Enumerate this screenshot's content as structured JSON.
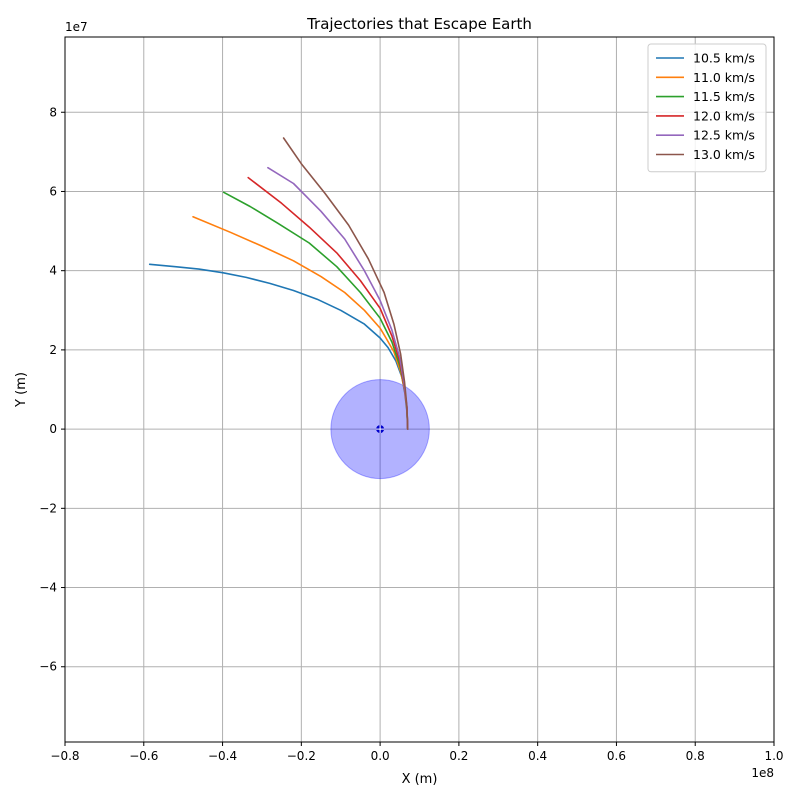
{
  "chart_data": {
    "type": "line",
    "title": "Trajectories that Escape Earth",
    "xlabel": "X (m)",
    "ylabel": "Y (m)",
    "x_offset_label": "1e8",
    "y_offset_label": "1e7",
    "xlim": [
      -0.8,
      1.0
    ],
    "ylim": [
      -7.9,
      9.9
    ],
    "xticks": [
      -0.8,
      -0.6,
      -0.4,
      -0.2,
      0.0,
      0.2,
      0.4,
      0.6,
      0.8,
      1.0
    ],
    "xtick_labels": [
      "−0.8",
      "−0.6",
      "−0.4",
      "−0.2",
      "0.0",
      "0.2",
      "0.4",
      "0.6",
      "0.8",
      "1.0"
    ],
    "yticks": [
      -6,
      -4,
      -2,
      0,
      2,
      4,
      6,
      8
    ],
    "ytick_labels": [
      "−6",
      "−4",
      "−2",
      "0",
      "2",
      "4",
      "6",
      "8"
    ],
    "grid": true,
    "legend_position": "top-right",
    "earth": {
      "center": [
        0,
        0
      ],
      "radius": 0.125,
      "fill_color": "#0000ff",
      "dot_color": "#0000cc"
    },
    "series": [
      {
        "name": "10.5 km/s",
        "color": "#1f77b4",
        "points": [
          [
            0.07,
            0.0
          ],
          [
            0.068,
            0.45
          ],
          [
            0.063,
            0.9
          ],
          [
            0.055,
            1.32
          ],
          [
            0.04,
            1.72
          ],
          [
            0.02,
            2.06
          ],
          [
            0.0,
            2.3
          ],
          [
            -0.04,
            2.65
          ],
          [
            -0.1,
            3.0
          ],
          [
            -0.16,
            3.28
          ],
          [
            -0.22,
            3.5
          ],
          [
            -0.28,
            3.68
          ],
          [
            -0.34,
            3.83
          ],
          [
            -0.4,
            3.95
          ],
          [
            -0.46,
            4.04
          ],
          [
            -0.52,
            4.1
          ],
          [
            -0.585,
            4.16
          ]
        ]
      },
      {
        "name": "11.0 km/s",
        "color": "#ff7f0e",
        "points": [
          [
            0.07,
            0.0
          ],
          [
            0.068,
            0.5
          ],
          [
            0.062,
            1.0
          ],
          [
            0.052,
            1.45
          ],
          [
            0.035,
            1.95
          ],
          [
            0.015,
            2.3
          ],
          [
            0.0,
            2.55
          ],
          [
            -0.04,
            3.0
          ],
          [
            -0.09,
            3.45
          ],
          [
            -0.15,
            3.85
          ],
          [
            -0.22,
            4.25
          ],
          [
            -0.3,
            4.62
          ],
          [
            -0.38,
            4.97
          ],
          [
            -0.475,
            5.36
          ]
        ]
      },
      {
        "name": "11.5 km/s",
        "color": "#2ca02c",
        "points": [
          [
            0.07,
            0.0
          ],
          [
            0.068,
            0.52
          ],
          [
            0.062,
            1.05
          ],
          [
            0.05,
            1.6
          ],
          [
            0.03,
            2.2
          ],
          [
            0.0,
            2.8
          ],
          [
            -0.05,
            3.45
          ],
          [
            -0.11,
            4.1
          ],
          [
            -0.18,
            4.7
          ],
          [
            -0.26,
            5.2
          ],
          [
            -0.33,
            5.62
          ],
          [
            -0.397,
            5.98
          ]
        ]
      },
      {
        "name": "12.0 km/s",
        "color": "#d62728",
        "points": [
          [
            0.07,
            0.0
          ],
          [
            0.068,
            0.55
          ],
          [
            0.061,
            1.1
          ],
          [
            0.05,
            1.7
          ],
          [
            0.03,
            2.35
          ],
          [
            0.0,
            3.05
          ],
          [
            -0.05,
            3.75
          ],
          [
            -0.11,
            4.45
          ],
          [
            -0.18,
            5.1
          ],
          [
            -0.25,
            5.7
          ],
          [
            -0.335,
            6.35
          ]
        ]
      },
      {
        "name": "12.5 km/s",
        "color": "#9467bd",
        "points": [
          [
            0.07,
            0.0
          ],
          [
            0.068,
            0.56
          ],
          [
            0.061,
            1.15
          ],
          [
            0.05,
            1.8
          ],
          [
            0.03,
            2.5
          ],
          [
            0.0,
            3.25
          ],
          [
            -0.04,
            4.0
          ],
          [
            -0.09,
            4.8
          ],
          [
            -0.15,
            5.5
          ],
          [
            -0.22,
            6.2
          ],
          [
            -0.285,
            6.6
          ]
        ]
      },
      {
        "name": "13.0 km/s",
        "color": "#8c564b",
        "points": [
          [
            0.07,
            0.0
          ],
          [
            0.068,
            0.57
          ],
          [
            0.062,
            1.2
          ],
          [
            0.052,
            1.9
          ],
          [
            0.035,
            2.65
          ],
          [
            0.01,
            3.45
          ],
          [
            -0.03,
            4.3
          ],
          [
            -0.08,
            5.15
          ],
          [
            -0.14,
            5.95
          ],
          [
            -0.2,
            6.7
          ],
          [
            -0.245,
            7.35
          ]
        ]
      }
    ]
  }
}
